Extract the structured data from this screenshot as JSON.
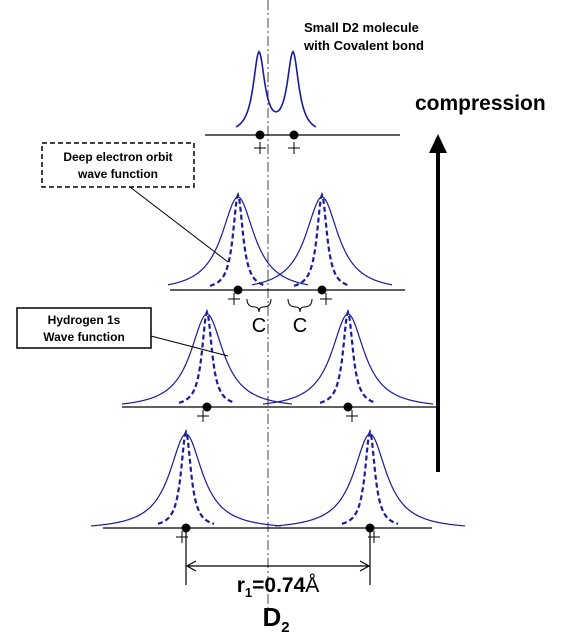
{
  "top_label": {
    "line1": "Small D2 molecule",
    "line2": "with Covalent bond"
  },
  "arrow_label": "compression",
  "deep_box": {
    "line1": "Deep electron orbit",
    "line2": "wave function"
  },
  "hydrogen_box": {
    "line1": "Hydrogen 1s",
    "line2": "Wave function"
  },
  "c_labels": [
    "C",
    "C"
  ],
  "distance": {
    "symbol": "r",
    "subscript": "1",
    "value": "=0.74",
    "unit": "Å"
  },
  "molecule": {
    "letter": "D",
    "subscript": "2"
  }
}
